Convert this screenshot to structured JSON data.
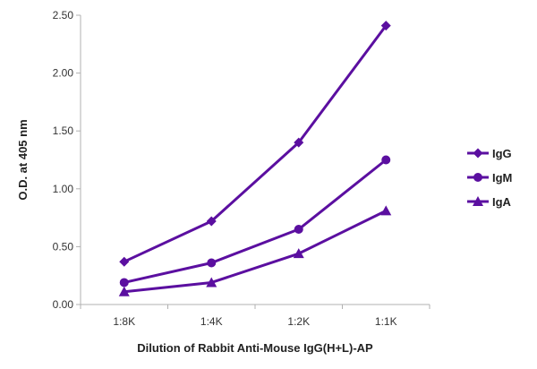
{
  "chart_data": {
    "type": "line",
    "categories": [
      "1:8K",
      "1:4K",
      "1:2K",
      "1:1K"
    ],
    "series": [
      {
        "name": "IgG",
        "marker": "diamond",
        "values": [
          0.37,
          0.72,
          1.4,
          2.41
        ]
      },
      {
        "name": "IgM",
        "marker": "circle",
        "values": [
          0.19,
          0.36,
          0.65,
          1.25
        ]
      },
      {
        "name": "IgA",
        "marker": "triangle",
        "values": [
          0.11,
          0.19,
          0.44,
          0.81
        ]
      }
    ],
    "xlabel": "Dilution of Rabbit Anti-Mouse IgG(H+L)-AP",
    "ylabel": "O.D. at 405 nm",
    "ylim": [
      0,
      2.5
    ],
    "yticks": [
      "0.00",
      "0.50",
      "1.00",
      "1.50",
      "2.00",
      "2.50"
    ],
    "grid": false,
    "legend": "right",
    "color": "#5b0fa0"
  }
}
